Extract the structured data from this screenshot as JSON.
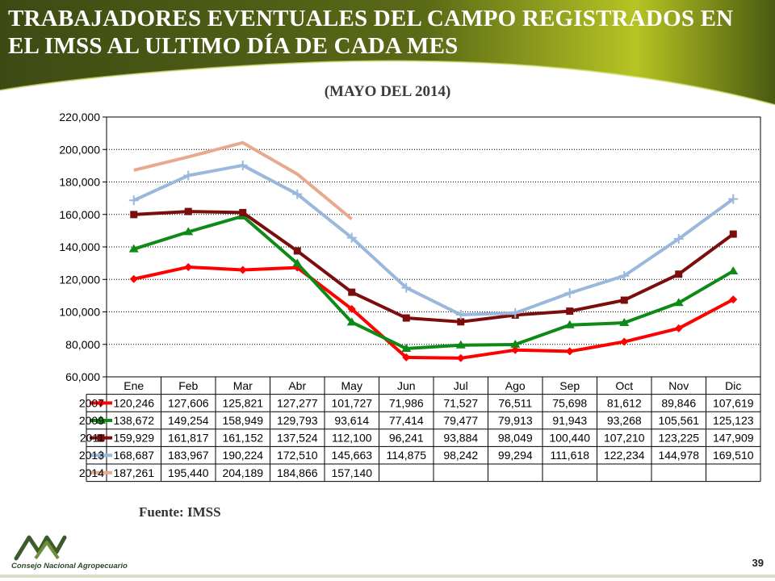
{
  "slide": {
    "title": "TRABAJADORES EVENTUALES DEL CAMPO REGISTRADOS EN EL IMSS AL ULTIMO DÍA DE CADA MES",
    "subtitle": "(MAYO DEL 2014)",
    "source": "Fuente: IMSS",
    "logo_text": "Consejo Nacional Agropecuario",
    "page_number": "39",
    "colors": {
      "banner_dark": "#3b4a12",
      "banner_light": "#c3d12a"
    }
  },
  "chart_data": {
    "type": "line",
    "title": "",
    "xlabel": "",
    "ylabel": "",
    "categories": [
      "Ene",
      "Feb",
      "Mar",
      "Abr",
      "May",
      "Jun",
      "Jul",
      "Ago",
      "Sep",
      "Oct",
      "Nov",
      "Dic"
    ],
    "ylim": [
      60000,
      220000
    ],
    "yticks": [
      "60,000",
      "80,000",
      "100,000",
      "120,000",
      "140,000",
      "160,000",
      "180,000",
      "200,000",
      "220,000"
    ],
    "grid": true,
    "legend": "data-table",
    "series": [
      {
        "name": "2007",
        "color": "#ff0000",
        "marker": "diamond",
        "values": [
          120246,
          127606,
          125821,
          127277,
          101727,
          71986,
          71527,
          76511,
          75698,
          81612,
          89846,
          107619
        ],
        "labels": [
          "120,246",
          "127,606",
          "125,821",
          "127,277",
          "101,727",
          "71,986",
          "71,527",
          "76,511",
          "75,698",
          "81,612",
          "89,846",
          "107,619"
        ]
      },
      {
        "name": "2009",
        "color": "#0e8a16",
        "marker": "triangle",
        "values": [
          138672,
          149254,
          158949,
          129793,
          93614,
          77414,
          79477,
          79913,
          91943,
          93268,
          105561,
          125123
        ],
        "labels": [
          "138,672",
          "149,254",
          "158,949",
          "129,793",
          "93,614",
          "77,414",
          "79,477",
          "79,913",
          "91,943",
          "93,268",
          "105,561",
          "125,123"
        ]
      },
      {
        "name": "2011",
        "color": "#7b0d0d",
        "marker": "square",
        "values": [
          159929,
          161817,
          161152,
          137524,
          112100,
          96241,
          93884,
          98049,
          100440,
          107210,
          123225,
          147909
        ],
        "labels": [
          "159,929",
          "161,817",
          "161,152",
          "137,524",
          "112,100",
          "96,241",
          "93,884",
          "98,049",
          "100,440",
          "107,210",
          "123,225",
          "147,909"
        ]
      },
      {
        "name": "2013",
        "color": "#9ab8dc",
        "marker": "cross",
        "values": [
          168687,
          183967,
          190224,
          172510,
          145663,
          114875,
          98242,
          99294,
          111618,
          122234,
          144978,
          169510
        ],
        "labels": [
          "168,687",
          "183,967",
          "190,224",
          "172,510",
          "145,663",
          "114,875",
          "98,242",
          "99,294",
          "111,618",
          "122,234",
          "144,978",
          "169,510"
        ]
      },
      {
        "name": "2014",
        "color": "#e8a98f",
        "marker": "none",
        "values": [
          187261,
          195440,
          204189,
          184866,
          157140,
          null,
          null,
          null,
          null,
          null,
          null,
          null
        ],
        "labels": [
          "187,261",
          "195,440",
          "204,189",
          "184,866",
          "157,140",
          "",
          "",
          "",
          "",
          "",
          "",
          ""
        ]
      }
    ]
  }
}
